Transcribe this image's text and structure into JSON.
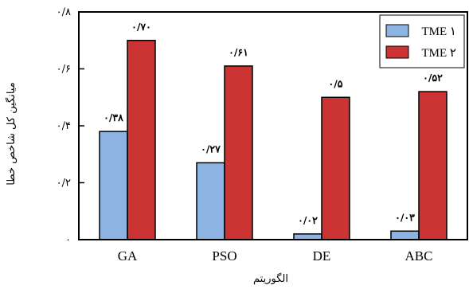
{
  "chart_data": {
    "type": "bar",
    "title": "",
    "xlabel": "الگوریتم",
    "ylabel": "میانگین کل شاخص خطا",
    "categories": [
      "GA",
      "PSO",
      "DE",
      "ABC"
    ],
    "series": [
      {
        "name": "TME ۱",
        "color": "#8db3e2",
        "values": [
          0.38,
          0.27,
          0.02,
          0.03
        ],
        "labels": [
          "۰/۳۸",
          "۰/۲۷",
          "۰/۰۲",
          "۰/۰۳"
        ]
      },
      {
        "name": "TME ۲",
        "color": "#cc3333",
        "values": [
          0.7,
          0.61,
          0.5,
          0.52
        ],
        "labels": [
          "۰/۷۰",
          "۰/۶۱",
          "۰/۵",
          "۰/۵۲"
        ]
      }
    ],
    "ylim": [
      0,
      0.8
    ],
    "yticks": [
      0,
      0.2,
      0.4,
      0.6,
      0.8
    ],
    "ytick_labels": [
      "۰",
      "۰/۲",
      "۰/۴",
      "۰/۶",
      "۰/۸"
    ],
    "grid": false,
    "legend_position": "top-right"
  }
}
